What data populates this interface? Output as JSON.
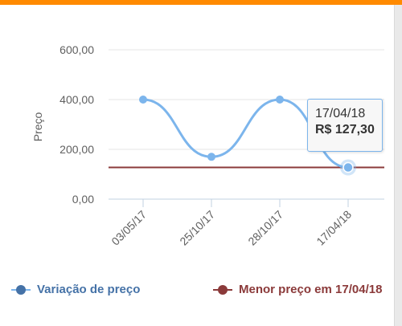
{
  "chart_data": {
    "type": "line",
    "ylabel": "Preço",
    "xlabel": "",
    "ylim": [
      0,
      600
    ],
    "yticks": [
      "0,00",
      "200,00",
      "400,00",
      "600,00"
    ],
    "ytick_values": [
      0,
      200,
      400,
      600
    ],
    "categories": [
      "03/05/17",
      "25/10/17",
      "28/10/17",
      "17/04/18"
    ],
    "grid": true,
    "legend_position": "bottom",
    "series": [
      {
        "name": "Variação de preço",
        "values": [
          400,
          170,
          400,
          127.3
        ],
        "color": "#4572a7",
        "line_color": "#7cb5ec"
      },
      {
        "name": "Menor preço em 17/04/18",
        "values": [
          127.3,
          127.3,
          127.3,
          127.3
        ],
        "color": "#8b3a3a",
        "line_color": "#8b3a3a"
      }
    ],
    "tooltip": {
      "date": "17/04/18",
      "value": "R$ 127,30"
    }
  },
  "colors": {
    "accent_bar": "#ff8a00",
    "legend_text": "#4572a7",
    "legend_text_min": "#8b3a3a"
  }
}
